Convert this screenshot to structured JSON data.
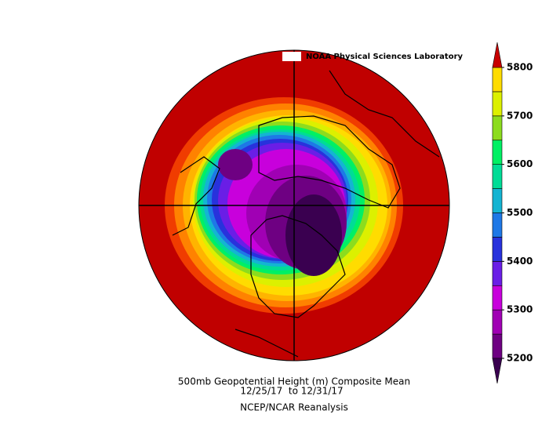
{
  "header": {
    "label": "NOAA Physical Sciences Laboratory"
  },
  "colorbar": {
    "ticks": [
      5200,
      5300,
      5400,
      5500,
      5600,
      5700,
      5800
    ],
    "below_color": "#3a0050",
    "colors": [
      "#6e0082",
      "#a000b4",
      "#c800dc",
      "#6a1ee6",
      "#2832dc",
      "#1e78e6",
      "#14b4d2",
      "#00dc96",
      "#00f064",
      "#8cdc1e",
      "#dcf000",
      "#ffdc00"
    ],
    "above_color": "#c80000"
  },
  "caption": {
    "lines": [
      "500mb Geopotential Height (m) Composite Mean",
      "12/25/17  to 12/31/17",
      "NCEP/NCAR Reanalysis"
    ]
  }
}
